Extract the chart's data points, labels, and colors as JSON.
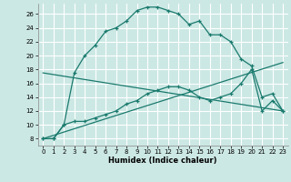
{
  "xlabel": "Humidex (Indice chaleur)",
  "bg_color": "#cce8e4",
  "grid_color": "#ffffff",
  "line_color": "#1a7a6e",
  "xlim": [
    -0.5,
    23.5
  ],
  "ylim": [
    7,
    27.5
  ],
  "yticks": [
    8,
    10,
    12,
    14,
    16,
    18,
    20,
    22,
    24,
    26
  ],
  "xticks": [
    0,
    1,
    2,
    3,
    4,
    5,
    6,
    7,
    8,
    9,
    10,
    11,
    12,
    13,
    14,
    15,
    16,
    17,
    18,
    19,
    20,
    21,
    22,
    23
  ],
  "line1_x": [
    0,
    1,
    2,
    3,
    4,
    5,
    6,
    7,
    8,
    9,
    10,
    11,
    12,
    13,
    14,
    15,
    16,
    17,
    18,
    19,
    20,
    21,
    22,
    23
  ],
  "line1_y": [
    8,
    8,
    10,
    17.5,
    20,
    21.5,
    23.5,
    24,
    25,
    26.5,
    27,
    27,
    26.5,
    26,
    24.5,
    25,
    23,
    23,
    22,
    19.5,
    18.5,
    14,
    14.5,
    12
  ],
  "line2_x": [
    0,
    1,
    2,
    3,
    4,
    5,
    6,
    7,
    8,
    9,
    10,
    11,
    12,
    13,
    14,
    15,
    16,
    17,
    18,
    19,
    20,
    21,
    22,
    23
  ],
  "line2_y": [
    8,
    8,
    10,
    10.5,
    10.5,
    11,
    11.5,
    12,
    13,
    13.5,
    14.5,
    15,
    15.5,
    15.5,
    15,
    14,
    13.5,
    14,
    14.5,
    16,
    18,
    12,
    13.5,
    12
  ],
  "line3_x": [
    0,
    23
  ],
  "line3_y": [
    8,
    19
  ],
  "line4_x": [
    0,
    23
  ],
  "line4_y": [
    17.5,
    12
  ]
}
